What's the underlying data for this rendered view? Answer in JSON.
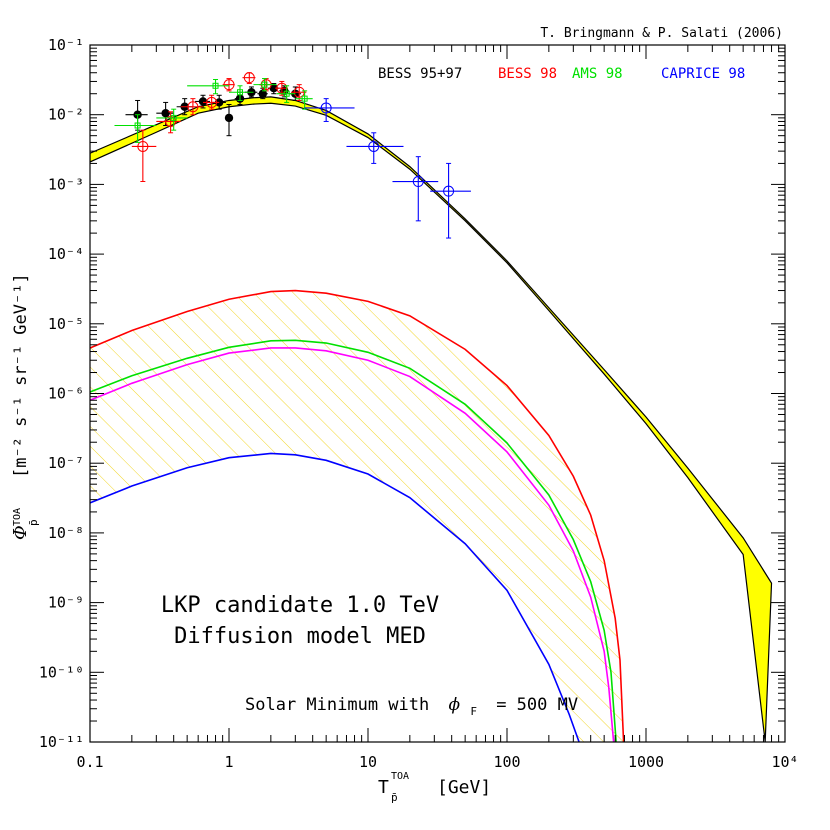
{
  "chart_data": {
    "type": "line",
    "credit": "T. Bringmann & P. Salati (2006)",
    "xscale": "log",
    "yscale": "log",
    "xlim": [
      0.1,
      10000
    ],
    "ylim_exp": [
      -11,
      -1
    ],
    "xlabel": {
      "main": "T",
      "sup": "TOA",
      "sub": "p̄",
      "unit": "[GeV]"
    },
    "ylabel": {
      "sym": "Φ",
      "sup": "TOA",
      "sub": "p̄",
      "unit": "[m⁻² s⁻¹ sr⁻¹ GeV⁻¹]"
    },
    "x_ticks": [
      {
        "v": 0.1,
        "label": "0.1"
      },
      {
        "v": 1,
        "label": "1"
      },
      {
        "v": 10,
        "label": "10"
      },
      {
        "v": 100,
        "label": "100"
      },
      {
        "v": 1000,
        "label": "1000"
      },
      {
        "v": 10000,
        "label": "10⁴"
      }
    ],
    "y_ticks": [
      {
        "v": -1,
        "label": "10⁻¹"
      },
      {
        "v": -2,
        "label": "10⁻²"
      },
      {
        "v": -3,
        "label": "10⁻³"
      },
      {
        "v": -4,
        "label": "10⁻⁴"
      },
      {
        "v": -5,
        "label": "10⁻⁵"
      },
      {
        "v": -6,
        "label": "10⁻⁶"
      },
      {
        "v": -7,
        "label": "10⁻⁷"
      },
      {
        "v": -8,
        "label": "10⁻⁸"
      },
      {
        "v": -9,
        "label": "10⁻⁹"
      },
      {
        "v": -10,
        "label": "10⁻¹⁰"
      },
      {
        "v": -11,
        "label": "10⁻¹¹"
      }
    ],
    "annotations": {
      "line1": "LKP candidate 1.0 TeV",
      "line2": "Diffusion model MED",
      "solar_prefix": "Solar Minimum with",
      "solar_phi": "ϕ",
      "solar_sub": "F",
      "solar_value": "= 500 MV"
    },
    "legend": [
      {
        "name": "BESS 95+97",
        "color": "#000000"
      },
      {
        "name": "BESS 98",
        "color": "#ff0000"
      },
      {
        "name": "AMS 98",
        "color": "#00e000"
      },
      {
        "name": "CAPRICE 98",
        "color": "#0000ff"
      }
    ],
    "background_band": {
      "color": "#ffff00",
      "upper": [
        [
          0.1,
          0.0028
        ],
        [
          0.3,
          0.0072
        ],
        [
          0.6,
          0.013
        ],
        [
          1,
          0.016
        ],
        [
          1.5,
          0.0175
        ],
        [
          2,
          0.018
        ],
        [
          3,
          0.016
        ],
        [
          5,
          0.0115
        ],
        [
          10,
          0.0053
        ],
        [
          20,
          0.0018
        ],
        [
          50,
          0.00032
        ],
        [
          100,
          8e-05
        ],
        [
          200,
          1.7e-05
        ],
        [
          500,
          2.2e-06
        ],
        [
          1000,
          4.6e-07
        ],
        [
          2000,
          8.5e-08
        ],
        [
          5000,
          8.5e-09
        ],
        [
          8000,
          1.9e-09
        ]
      ],
      "lower": [
        [
          0.1,
          0.0021
        ],
        [
          0.3,
          0.0056
        ],
        [
          0.6,
          0.0105
        ],
        [
          1,
          0.013
        ],
        [
          1.5,
          0.0142
        ],
        [
          2,
          0.0146
        ],
        [
          3,
          0.0133
        ],
        [
          5,
          0.0098
        ],
        [
          10,
          0.0047
        ],
        [
          20,
          0.00165
        ],
        [
          50,
          0.0003
        ],
        [
          100,
          7.5e-05
        ],
        [
          200,
          1.55e-05
        ],
        [
          500,
          1.9e-06
        ],
        [
          1000,
          3.7e-07
        ],
        [
          2000,
          6.2e-08
        ],
        [
          5000,
          4.9e-09
        ],
        [
          7200,
          1e-11
        ]
      ]
    },
    "signal_band": {
      "color": "#ffe833",
      "between": [
        "red",
        "blue"
      ]
    },
    "series": [
      {
        "color": "#ff0000",
        "points": [
          [
            0.1,
            4.5e-06
          ],
          [
            0.2,
            8e-06
          ],
          [
            0.5,
            1.5e-05
          ],
          [
            1,
            2.25e-05
          ],
          [
            2,
            2.9e-05
          ],
          [
            3,
            3e-05
          ],
          [
            5,
            2.75e-05
          ],
          [
            10,
            2.1e-05
          ],
          [
            20,
            1.3e-05
          ],
          [
            50,
            4.3e-06
          ],
          [
            100,
            1.3e-06
          ],
          [
            200,
            2.5e-07
          ],
          [
            300,
            6.5e-08
          ],
          [
            400,
            1.8e-08
          ],
          [
            500,
            4e-09
          ],
          [
            600,
            6e-10
          ],
          [
            650,
            1.5e-10
          ],
          [
            690,
            1e-11
          ]
        ]
      },
      {
        "color": "#00e000",
        "points": [
          [
            0.1,
            1.05e-06
          ],
          [
            0.2,
            1.8e-06
          ],
          [
            0.5,
            3.2e-06
          ],
          [
            1,
            4.6e-06
          ],
          [
            2,
            5.7e-06
          ],
          [
            3,
            5.8e-06
          ],
          [
            5,
            5.3e-06
          ],
          [
            10,
            3.9e-06
          ],
          [
            20,
            2.3e-06
          ],
          [
            50,
            7e-07
          ],
          [
            100,
            1.95e-07
          ],
          [
            200,
            3.5e-08
          ],
          [
            300,
            8e-09
          ],
          [
            400,
            2e-09
          ],
          [
            500,
            4e-10
          ],
          [
            560,
            1e-10
          ],
          [
            610,
            1e-11
          ]
        ]
      },
      {
        "color": "#ff00ff",
        "points": [
          [
            0.1,
            8e-07
          ],
          [
            0.2,
            1.4e-06
          ],
          [
            0.5,
            2.6e-06
          ],
          [
            1,
            3.8e-06
          ],
          [
            2,
            4.5e-06
          ],
          [
            3,
            4.5e-06
          ],
          [
            5,
            4.1e-06
          ],
          [
            10,
            3e-06
          ],
          [
            20,
            1.75e-06
          ],
          [
            50,
            5.2e-07
          ],
          [
            100,
            1.45e-07
          ],
          [
            200,
            2.5e-08
          ],
          [
            300,
            5.5e-09
          ],
          [
            400,
            1.2e-09
          ],
          [
            500,
            2e-10
          ],
          [
            540,
            6e-11
          ],
          [
            585,
            1e-11
          ]
        ]
      },
      {
        "color": "#0000ff",
        "points": [
          [
            0.1,
            2.7e-08
          ],
          [
            0.2,
            4.7e-08
          ],
          [
            0.5,
            8.6e-08
          ],
          [
            1,
            1.2e-07
          ],
          [
            2,
            1.38e-07
          ],
          [
            3,
            1.32e-07
          ],
          [
            5,
            1.1e-07
          ],
          [
            10,
            7e-08
          ],
          [
            20,
            3.2e-08
          ],
          [
            50,
            7e-09
          ],
          [
            100,
            1.5e-09
          ],
          [
            200,
            1.3e-10
          ],
          [
            280,
            2.5e-11
          ],
          [
            330,
            1e-11
          ]
        ]
      }
    ],
    "data_points": [
      {
        "set": "black",
        "x": 0.22,
        "y": 0.01,
        "x_err": [
          0.18,
          0.26
        ],
        "y_err": [
          0.006,
          0.016
        ]
      },
      {
        "set": "black",
        "x": 0.35,
        "y": 0.0105,
        "x_err": [
          0.3,
          0.4
        ],
        "y_err": [
          0.007,
          0.015
        ]
      },
      {
        "set": "black",
        "x": 0.48,
        "y": 0.013,
        "x_err": [
          0.42,
          0.55
        ],
        "y_err": [
          0.01,
          0.017
        ]
      },
      {
        "set": "black",
        "x": 0.65,
        "y": 0.0155,
        "x_err": [
          0.57,
          0.73
        ],
        "y_err": [
          0.0125,
          0.019
        ]
      },
      {
        "set": "black",
        "x": 0.85,
        "y": 0.015,
        "x_err": [
          0.76,
          0.95
        ],
        "y_err": [
          0.012,
          0.019
        ]
      },
      {
        "set": "black",
        "x": 1.0,
        "y": 0.009,
        "x_err": [
          0.95,
          1.05
        ],
        "y_err": [
          0.005,
          0.014
        ]
      },
      {
        "set": "black",
        "x": 1.2,
        "y": 0.017,
        "x_err": [
          1.1,
          1.3
        ],
        "y_err": [
          0.014,
          0.021
        ]
      },
      {
        "set": "black",
        "x": 1.45,
        "y": 0.021,
        "x_err": [
          1.3,
          1.6
        ],
        "y_err": [
          0.018,
          0.025
        ]
      },
      {
        "set": "black",
        "x": 1.75,
        "y": 0.02,
        "x_err": [
          1.6,
          1.9
        ],
        "y_err": [
          0.017,
          0.024
        ]
      },
      {
        "set": "black",
        "x": 2.1,
        "y": 0.024,
        "x_err": [
          1.9,
          2.3
        ],
        "y_err": [
          0.02,
          0.028
        ]
      },
      {
        "set": "black",
        "x": 2.5,
        "y": 0.022,
        "x_err": [
          2.3,
          2.7
        ],
        "y_err": [
          0.018,
          0.026
        ]
      },
      {
        "set": "black",
        "x": 3.0,
        "y": 0.02,
        "x_err": [
          2.7,
          3.3
        ],
        "y_err": [
          0.016,
          0.025
        ]
      },
      {
        "set": "red",
        "x": 0.24,
        "y": 0.0035,
        "x_err": [
          0.2,
          0.3
        ],
        "y_err": [
          0.0011,
          0.006
        ]
      },
      {
        "set": "red",
        "x": 0.38,
        "y": 0.008,
        "x_err": [
          0.3,
          0.45
        ],
        "y_err": [
          0.0055,
          0.011
        ]
      },
      {
        "set": "red",
        "x": 0.55,
        "y": 0.013,
        "x_err": [
          0.45,
          0.65
        ],
        "y_err": [
          0.01,
          0.017
        ]
      },
      {
        "set": "red",
        "x": 0.75,
        "y": 0.015,
        "x_err": [
          0.65,
          0.85
        ],
        "y_err": [
          0.012,
          0.019
        ]
      },
      {
        "set": "red",
        "x": 1.0,
        "y": 0.027,
        "x_err": [
          0.9,
          1.1
        ],
        "y_err": [
          0.022,
          0.033
        ]
      },
      {
        "set": "red",
        "x": 1.4,
        "y": 0.034,
        "x_err": [
          1.25,
          1.55
        ],
        "y_err": [
          0.028,
          0.04
        ]
      },
      {
        "set": "red",
        "x": 1.85,
        "y": 0.027,
        "x_err": [
          1.65,
          2.05
        ],
        "y_err": [
          0.022,
          0.033
        ]
      },
      {
        "set": "red",
        "x": 2.4,
        "y": 0.024,
        "x_err": [
          2.15,
          2.65
        ],
        "y_err": [
          0.019,
          0.03
        ]
      },
      {
        "set": "red",
        "x": 3.2,
        "y": 0.021,
        "x_err": [
          2.8,
          3.6
        ],
        "y_err": [
          0.016,
          0.027
        ]
      },
      {
        "set": "green",
        "x": 0.22,
        "y": 0.007,
        "x_err": [
          0.15,
          0.3
        ],
        "y_err": [
          0.004,
          0.01
        ]
      },
      {
        "set": "green",
        "x": 0.4,
        "y": 0.009,
        "x_err": [
          0.3,
          0.5
        ],
        "y_err": [
          0.006,
          0.012
        ]
      },
      {
        "set": "green",
        "x": 0.8,
        "y": 0.026,
        "x_err": [
          0.5,
          1.0
        ],
        "y_err": [
          0.02,
          0.032
        ]
      },
      {
        "set": "green",
        "x": 1.2,
        "y": 0.021,
        "x_err": [
          1.0,
          1.5
        ],
        "y_err": [
          0.016,
          0.026
        ]
      },
      {
        "set": "green",
        "x": 1.8,
        "y": 0.027,
        "x_err": [
          1.5,
          2.2
        ],
        "y_err": [
          0.022,
          0.033
        ]
      },
      {
        "set": "green",
        "x": 2.6,
        "y": 0.02,
        "x_err": [
          2.2,
          3.0
        ],
        "y_err": [
          0.015,
          0.026
        ]
      },
      {
        "set": "green",
        "x": 3.5,
        "y": 0.017,
        "x_err": [
          3.0,
          4.0
        ],
        "y_err": [
          0.012,
          0.022
        ]
      },
      {
        "set": "blue",
        "x": 5.0,
        "y": 0.0125,
        "x_err": [
          3.5,
          8.0
        ],
        "y_err": [
          0.008,
          0.017
        ]
      },
      {
        "set": "blue",
        "x": 11,
        "y": 0.0035,
        "x_err": [
          7,
          18
        ],
        "y_err": [
          0.002,
          0.0055
        ]
      },
      {
        "set": "blue",
        "x": 23,
        "y": 0.0011,
        "x_err": [
          15,
          32
        ],
        "y_err": [
          0.0003,
          0.0025
        ]
      },
      {
        "set": "blue",
        "x": 38,
        "y": 0.0008,
        "x_err": [
          28,
          55
        ],
        "y_err": [
          0.00017,
          0.002
        ]
      }
    ]
  }
}
